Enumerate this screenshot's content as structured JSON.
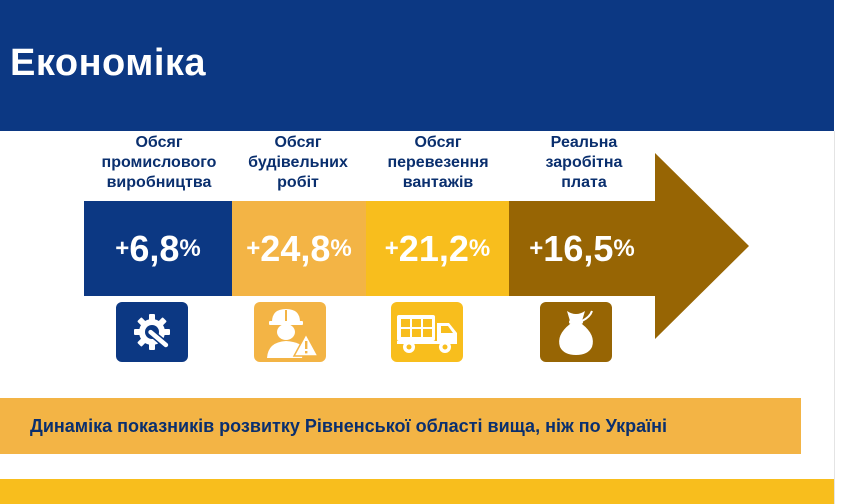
{
  "header": {
    "title": "Економіка"
  },
  "metrics": [
    {
      "label_lines": [
        "Обсяг",
        "промислового",
        "виробництва"
      ],
      "sign": "+",
      "number": "6,8",
      "unit": "%",
      "icon": "gear-wrench-icon",
      "color": "#0c3883"
    },
    {
      "label_lines": [
        "Обсяг",
        "будівельних",
        "робіт"
      ],
      "sign": "+",
      "number": "24,8",
      "unit": "%",
      "icon": "construction-worker-icon",
      "color": "#f3b445"
    },
    {
      "label_lines": [
        "Обсяг",
        "перевезення",
        "вантажів"
      ],
      "sign": "+",
      "number": "21,2",
      "unit": "%",
      "icon": "delivery-truck-icon",
      "color": "#f8be1d"
    },
    {
      "label_lines": [
        "Реальна",
        "заробітна",
        "плата"
      ],
      "sign": "+",
      "number": "16,5",
      "unit": "%",
      "icon": "money-bag-icon",
      "color": "#976504"
    }
  ],
  "banner": {
    "text": "Динаміка показників розвитку Рівненської області вища, ніж по Україні"
  },
  "colors": {
    "navy": "#0c3883",
    "orange": "#f3b445",
    "yellow": "#f8be1d",
    "brown": "#976504"
  }
}
